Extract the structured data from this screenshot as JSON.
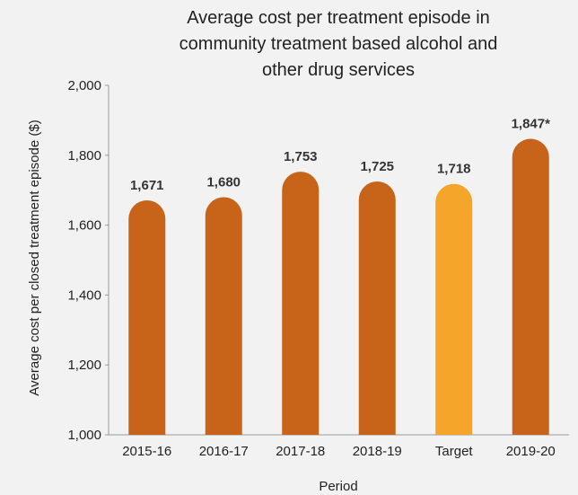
{
  "chart_data": {
    "type": "bar",
    "title_lines": [
      "Average cost per treatment episode in",
      "community treatment based alcohol and",
      "other drug services"
    ],
    "xlabel": "Period",
    "ylabel": "Average cost per closed treatment episode ($)",
    "categories": [
      "2015-16",
      "2016-17",
      "2017-18",
      "2018-19",
      "Target",
      "2019-20"
    ],
    "values": [
      1671,
      1680,
      1753,
      1725,
      1718,
      1847
    ],
    "data_labels": [
      "1,671",
      "1,680",
      "1,753",
      "1,725",
      "1,718",
      "1,847*"
    ],
    "ylim": [
      1000,
      2000
    ],
    "yticks": [
      1000,
      1200,
      1400,
      1600,
      1800,
      2000
    ],
    "ytick_labels": [
      "1,000",
      "1,200",
      "1,400",
      "1,600",
      "1,800",
      "2,000"
    ],
    "bar_colors": [
      "#c8641a",
      "#c8641a",
      "#c8641a",
      "#c8641a",
      "#f5a52a",
      "#c8641a"
    ],
    "grid": false,
    "legend": "none"
  }
}
